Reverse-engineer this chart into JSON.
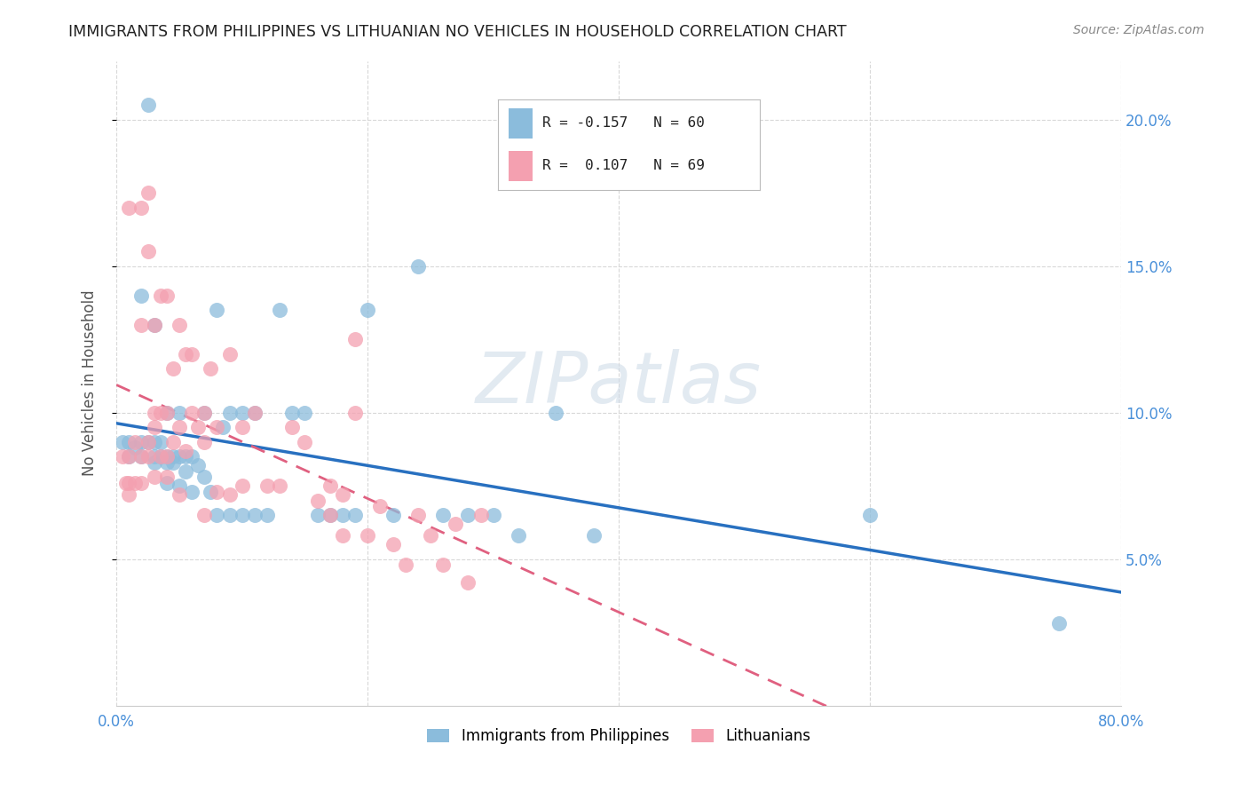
{
  "title": "IMMIGRANTS FROM PHILIPPINES VS LITHUANIAN NO VEHICLES IN HOUSEHOLD CORRELATION CHART",
  "source": "Source: ZipAtlas.com",
  "ylabel": "No Vehicles in Household",
  "xlim": [
    0.0,
    0.8
  ],
  "ylim": [
    0.0,
    0.22
  ],
  "x_ticks": [
    0.0,
    0.2,
    0.4,
    0.6,
    0.8
  ],
  "x_tick_labels": [
    "0.0%",
    "",
    "",
    "",
    "80.0%"
  ],
  "y_ticks": [
    0.05,
    0.1,
    0.15,
    0.2
  ],
  "y_tick_labels_right": [
    "5.0%",
    "10.0%",
    "15.0%",
    "20.0%"
  ],
  "philippines_color": "#8bbcdc",
  "lithuanians_color": "#f4a0b0",
  "trendline_philippines_color": "#2870c0",
  "trendline_lithuanians_color": "#e06080",
  "watermark": "ZIPatlas",
  "philippines_x": [
    0.005,
    0.01,
    0.01,
    0.015,
    0.02,
    0.02,
    0.02,
    0.025,
    0.025,
    0.03,
    0.03,
    0.03,
    0.03,
    0.035,
    0.035,
    0.04,
    0.04,
    0.04,
    0.04,
    0.045,
    0.045,
    0.05,
    0.05,
    0.05,
    0.055,
    0.055,
    0.06,
    0.06,
    0.065,
    0.07,
    0.07,
    0.075,
    0.08,
    0.08,
    0.085,
    0.09,
    0.09,
    0.1,
    0.1,
    0.11,
    0.11,
    0.12,
    0.13,
    0.14,
    0.15,
    0.16,
    0.17,
    0.18,
    0.19,
    0.2,
    0.22,
    0.24,
    0.26,
    0.28,
    0.3,
    0.32,
    0.35,
    0.38,
    0.6,
    0.75
  ],
  "philippines_y": [
    0.09,
    0.09,
    0.085,
    0.088,
    0.14,
    0.09,
    0.085,
    0.205,
    0.09,
    0.13,
    0.09,
    0.085,
    0.083,
    0.09,
    0.085,
    0.1,
    0.085,
    0.083,
    0.076,
    0.085,
    0.083,
    0.1,
    0.085,
    0.075,
    0.085,
    0.08,
    0.085,
    0.073,
    0.082,
    0.1,
    0.078,
    0.073,
    0.135,
    0.065,
    0.095,
    0.1,
    0.065,
    0.1,
    0.065,
    0.1,
    0.065,
    0.065,
    0.135,
    0.1,
    0.1,
    0.065,
    0.065,
    0.065,
    0.065,
    0.135,
    0.065,
    0.15,
    0.065,
    0.065,
    0.065,
    0.058,
    0.1,
    0.058,
    0.065,
    0.028
  ],
  "lithuanians_x": [
    0.005,
    0.008,
    0.01,
    0.01,
    0.01,
    0.01,
    0.015,
    0.015,
    0.02,
    0.02,
    0.02,
    0.02,
    0.025,
    0.025,
    0.025,
    0.025,
    0.03,
    0.03,
    0.03,
    0.03,
    0.035,
    0.035,
    0.035,
    0.04,
    0.04,
    0.04,
    0.04,
    0.045,
    0.045,
    0.05,
    0.05,
    0.05,
    0.055,
    0.055,
    0.06,
    0.06,
    0.065,
    0.07,
    0.07,
    0.07,
    0.075,
    0.08,
    0.08,
    0.09,
    0.09,
    0.1,
    0.1,
    0.11,
    0.12,
    0.13,
    0.14,
    0.15,
    0.16,
    0.17,
    0.18,
    0.19,
    0.2,
    0.21,
    0.22,
    0.23,
    0.24,
    0.25,
    0.26,
    0.27,
    0.28,
    0.29,
    0.17,
    0.18,
    0.19
  ],
  "lithuanians_y": [
    0.085,
    0.076,
    0.17,
    0.085,
    0.076,
    0.072,
    0.09,
    0.076,
    0.17,
    0.13,
    0.085,
    0.076,
    0.175,
    0.155,
    0.09,
    0.085,
    0.13,
    0.1,
    0.095,
    0.078,
    0.14,
    0.1,
    0.085,
    0.14,
    0.1,
    0.085,
    0.078,
    0.115,
    0.09,
    0.13,
    0.095,
    0.072,
    0.12,
    0.087,
    0.12,
    0.1,
    0.095,
    0.1,
    0.09,
    0.065,
    0.115,
    0.095,
    0.073,
    0.12,
    0.072,
    0.095,
    0.075,
    0.1,
    0.075,
    0.075,
    0.095,
    0.09,
    0.07,
    0.075,
    0.072,
    0.125,
    0.058,
    0.068,
    0.055,
    0.048,
    0.065,
    0.058,
    0.048,
    0.062,
    0.042,
    0.065,
    0.065,
    0.058,
    0.1
  ],
  "trendline_phil_x0": 0.0,
  "trendline_phil_x1": 0.8,
  "trendline_lith_x0": 0.0,
  "trendline_lith_x1": 0.8,
  "legend_phil_label": "R = -0.157   N = 60",
  "legend_lith_label": "R =  0.107   N = 69",
  "legend_title_phil": "",
  "legend_title_lith": "",
  "bottom_legend_phil": "Immigrants from Philippines",
  "bottom_legend_lith": "Lithuanians"
}
